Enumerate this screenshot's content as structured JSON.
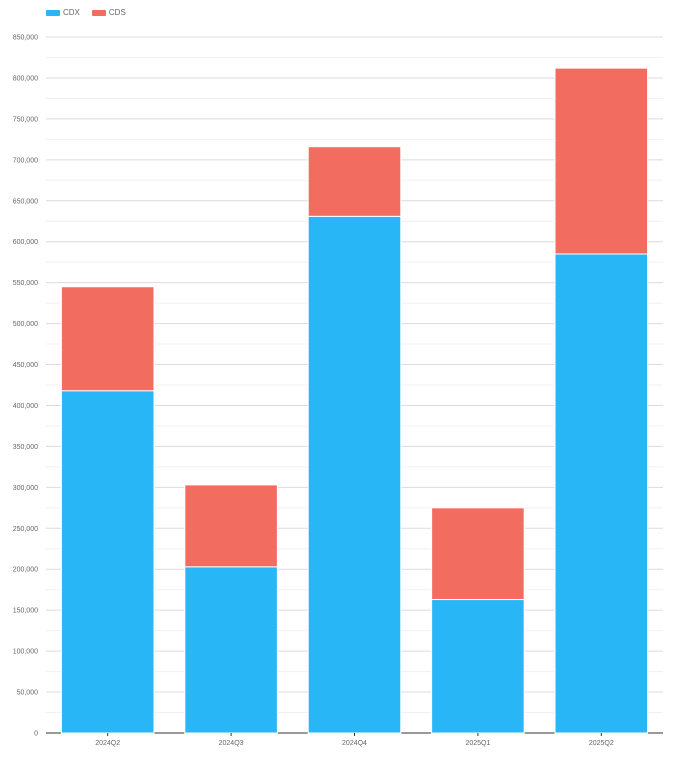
{
  "chart_data": {
    "type": "bar",
    "stacked": true,
    "categories": [
      "2024Q2",
      "2024Q3",
      "2024Q4",
      "2025Q1",
      "2025Q2"
    ],
    "series": [
      {
        "name": "CDX",
        "color": "#29b6f6",
        "values": [
          418000,
          203000,
          631000,
          163000,
          585000
        ]
      },
      {
        "name": "CDS",
        "color": "#f26c5f",
        "values": [
          127000,
          100000,
          85000,
          112000,
          227000
        ]
      }
    ],
    "ylim": [
      0,
      850000
    ],
    "yticks": [
      "0",
      "50,000",
      "100,000",
      "150,000",
      "200,000",
      "250,000",
      "300,000",
      "350,000",
      "400,000",
      "450,000",
      "500,000",
      "550,000",
      "600,000",
      "650,000",
      "700,000",
      "750,000",
      "800,000",
      "850,000"
    ],
    "grid": true,
    "legend_position": "top-left",
    "title": "",
    "xlabel": "",
    "ylabel": ""
  }
}
